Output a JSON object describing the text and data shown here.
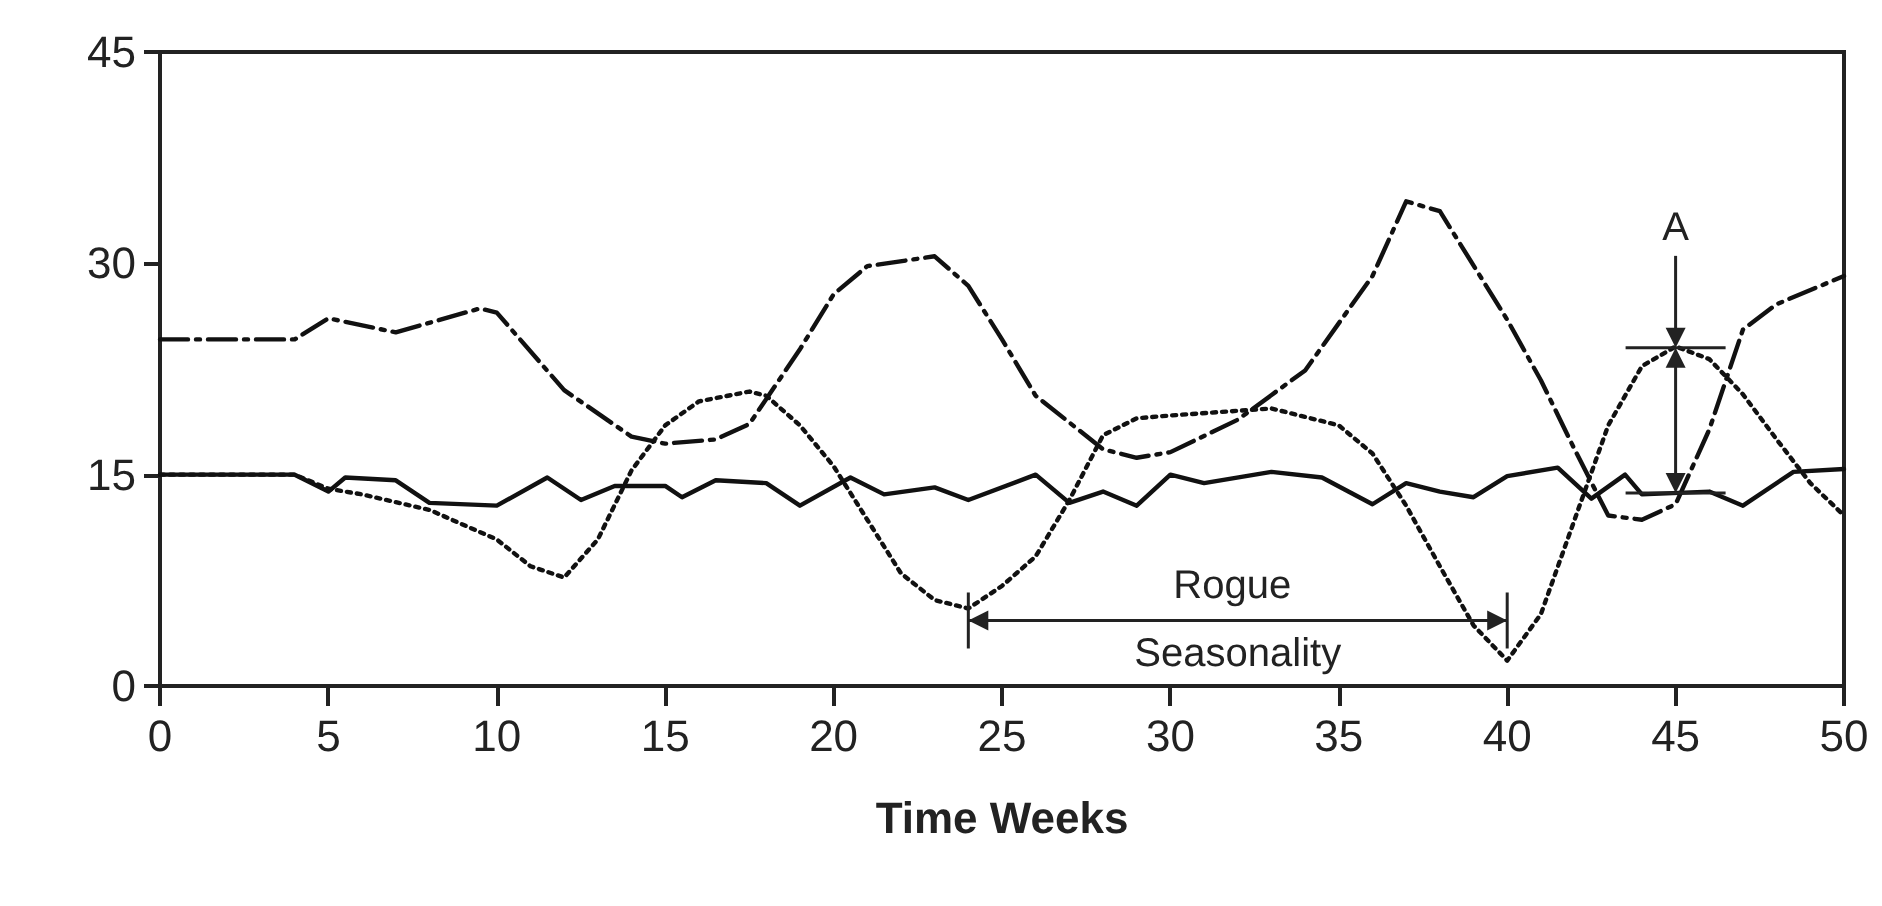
{
  "chart_data": {
    "type": "line",
    "xlabel": "Time Weeks",
    "xlim": [
      0,
      50
    ],
    "xticks": [
      0,
      5,
      10,
      15,
      20,
      25,
      30,
      35,
      40,
      45,
      50
    ],
    "ylim": [
      0,
      45
    ],
    "yticks": [
      0,
      15,
      30,
      45
    ],
    "grid": false,
    "marker": "none",
    "series": [
      {
        "color": "#111111",
        "line_style": "solid",
        "x": [
          0,
          4,
          5,
          5.5,
          7,
          8,
          10,
          11.5,
          12.5,
          13.5,
          15,
          15.5,
          16.5,
          18,
          19,
          20.5,
          21.5,
          23,
          24,
          26,
          27,
          28,
          29,
          30,
          31,
          33,
          34.5,
          36,
          37,
          38,
          39,
          40,
          41.5,
          42.5,
          43.5,
          44,
          46,
          47,
          48.5,
          50
        ],
        "values": [
          15,
          15,
          13.8,
          14.8,
          14.6,
          13,
          12.8,
          14.8,
          13.2,
          14.2,
          14.2,
          13.4,
          14.6,
          14.4,
          12.8,
          14.8,
          13.6,
          14.1,
          13.2,
          15,
          13,
          13.8,
          12.8,
          15,
          14.4,
          15.2,
          14.8,
          12.9,
          14.4,
          13.8,
          13.4,
          14.9,
          15.5,
          13.3,
          15,
          13.6,
          13.8,
          12.8,
          15.2,
          15.4
        ]
      },
      {
        "color": "#111111",
        "line_style": "dashed",
        "x": [
          0,
          3,
          4,
          5,
          7,
          9.5,
          10,
          12,
          14,
          15,
          16.5,
          17.5,
          19,
          20,
          21,
          23,
          24,
          25,
          26,
          28,
          29,
          30,
          32,
          34,
          36,
          37,
          38,
          40,
          41,
          42,
          43,
          44,
          45,
          46,
          47,
          48,
          50
        ],
        "values": [
          24.6,
          24.6,
          24.6,
          26.1,
          25.1,
          26.8,
          26.5,
          21,
          17.7,
          17.2,
          17.5,
          18.6,
          23.9,
          27.8,
          29.8,
          30.5,
          28.4,
          24.6,
          20.6,
          16.8,
          16.2,
          16.6,
          18.9,
          22.4,
          29.1,
          34.4,
          33.7,
          26,
          21.7,
          16.8,
          12.1,
          11.8,
          12.9,
          18.2,
          25.3,
          27.1,
          29.1
        ]
      },
      {
        "color": "#111111",
        "line_style": "dotted",
        "x": [
          0,
          4,
          5,
          6,
          8,
          10,
          11,
          12,
          13,
          14,
          15,
          16,
          17.5,
          18,
          19,
          20,
          21,
          22,
          23,
          24,
          25,
          26,
          27,
          28,
          29,
          30,
          33,
          35,
          36,
          37,
          38,
          39,
          40,
          41,
          42,
          43,
          44,
          45,
          46,
          47,
          48,
          49,
          50
        ],
        "values": [
          15,
          15,
          14,
          13.6,
          12.5,
          10.4,
          8.5,
          7.7,
          10.4,
          15.3,
          18.5,
          20.2,
          20.9,
          20.6,
          18.5,
          15.6,
          11.8,
          8,
          6.1,
          5.5,
          7.1,
          9.2,
          13.2,
          17.8,
          19,
          19.2,
          19.7,
          18.5,
          16.5,
          12.8,
          8.5,
          4.3,
          1.8,
          5.1,
          11.8,
          18.5,
          22.7,
          24.1,
          23.2,
          20.7,
          17.5,
          14.4,
          12.1
        ]
      }
    ],
    "annotations": [
      {
        "text": "A",
        "x": 45,
        "y": 24
      },
      "Rogue Seasonality"
    ]
  }
}
